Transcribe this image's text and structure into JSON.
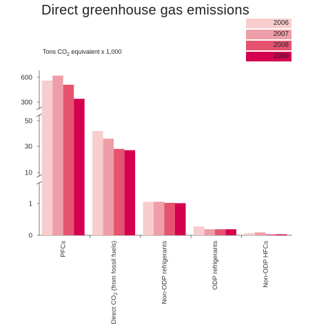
{
  "title": "Direct greenhouse gas emissions",
  "unit_label": {
    "prefix": "Tons CO",
    "sub": "2",
    "suffix": " equivalent x 1,000"
  },
  "chart_data": {
    "type": "bar",
    "title": "Direct greenhouse gas emissions",
    "ylabel": "Tons CO2 equivalent x 1,000",
    "y_scale": "broken axis with segments 0–1, 1–10, 10–50, 300–600",
    "y_ticks": [
      "0",
      "1",
      "10",
      "30",
      "50",
      "300",
      "600"
    ],
    "categories": [
      "PFCs",
      "Direct CO2 (from fossil fuels)",
      "Non-ODP refrigerants",
      "ODP refrigerants",
      "Non-ODP HFCs"
    ],
    "category_labels": [
      {
        "main": "PFCs",
        "sub": "",
        "rest": ""
      },
      {
        "main": "Direct CO",
        "sub": "2",
        "rest": " (from fossil fuels)"
      },
      {
        "main": "Non-ODP refrigerants",
        "sub": "",
        "rest": ""
      },
      {
        "main": "ODP refrigerants",
        "sub": "",
        "rest": ""
      },
      {
        "main": "Non-ODP HFCs",
        "sub": "",
        "rest": ""
      }
    ],
    "series": [
      {
        "name": "2006",
        "color": "#f7cdcd",
        "values": [
          560,
          42,
          1.5,
          0.28,
          0.07
        ]
      },
      {
        "name": "2007",
        "color": "#ee9ea6",
        "values": [
          620,
          36,
          1.52,
          0.19,
          0.09
        ]
      },
      {
        "name": "2008",
        "color": "#e5536f",
        "values": [
          510,
          28,
          1.2,
          0.19,
          0.03
        ]
      },
      {
        "name": "2009",
        "color": "#d4004f",
        "values": [
          340,
          27,
          1.1,
          0.19,
          0.03
        ]
      }
    ],
    "legend": "top-right",
    "grid": false
  }
}
